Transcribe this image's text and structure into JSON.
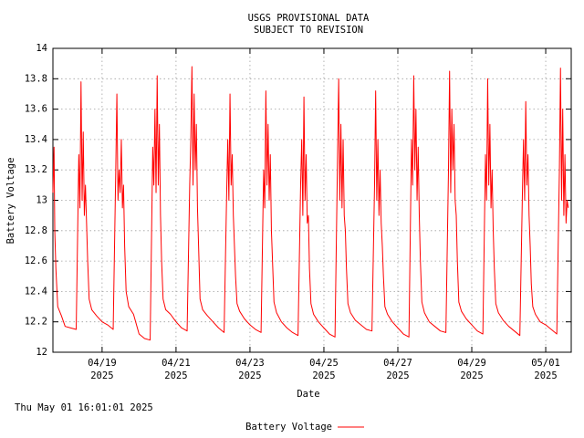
{
  "chart_data": {
    "type": "line",
    "title": "USGS PROVISIONAL DATA",
    "subtitle": "SUBJECT TO REVISION",
    "xlabel": "Date",
    "ylabel": "Battery Voltage",
    "footnote": "Thu May 01 16:01:01 2025",
    "xlim": [
      17.67,
      31.69
    ],
    "ylim": [
      12,
      14
    ],
    "xticks": [
      {
        "value": 19,
        "label": "04/19 2025"
      },
      {
        "value": 21,
        "label": "04/21 2025"
      },
      {
        "value": 23,
        "label": "04/23 2025"
      },
      {
        "value": 25,
        "label": "04/25 2025"
      },
      {
        "value": 27,
        "label": "04/27 2025"
      },
      {
        "value": 29,
        "label": "04/29 2025"
      },
      {
        "value": 31,
        "label": "05/01 2025"
      }
    ],
    "yticks": [
      12,
      12.2,
      12.4,
      12.6,
      12.8,
      13,
      13.2,
      13.4,
      13.6,
      13.8,
      14
    ],
    "grid": true,
    "legend": "bottom",
    "x": [
      17.67,
      17.7,
      17.72,
      17.75,
      17.8,
      17.9,
      18,
      18.15,
      18.3,
      18.37,
      18.4,
      18.43,
      18.46,
      18.49,
      18.52,
      18.55,
      18.58,
      18.61,
      18.65,
      18.72,
      18.85,
      19,
      19.15,
      19.3,
      19.37,
      19.4,
      19.43,
      19.46,
      19.49,
      19.52,
      19.55,
      19.58,
      19.61,
      19.65,
      19.72,
      19.85,
      20,
      20.15,
      20.3,
      20.37,
      20.4,
      20.43,
      20.46,
      20.49,
      20.52,
      20.55,
      20.58,
      20.61,
      20.65,
      20.72,
      20.85,
      21,
      21.15,
      21.3,
      21.37,
      21.4,
      21.43,
      21.46,
      21.49,
      21.52,
      21.55,
      21.58,
      21.61,
      21.65,
      21.72,
      21.85,
      22,
      22.15,
      22.3,
      22.37,
      22.4,
      22.43,
      22.46,
      22.49,
      22.52,
      22.55,
      22.58,
      22.61,
      22.65,
      22.72,
      22.85,
      23,
      23.15,
      23.3,
      23.37,
      23.4,
      23.43,
      23.46,
      23.49,
      23.52,
      23.55,
      23.58,
      23.61,
      23.65,
      23.72,
      23.85,
      24,
      24.15,
      24.3,
      24.37,
      24.4,
      24.43,
      24.46,
      24.49,
      24.52,
      24.55,
      24.58,
      24.61,
      24.65,
      24.72,
      24.85,
      25,
      25.15,
      25.3,
      25.37,
      25.4,
      25.43,
      25.46,
      25.49,
      25.52,
      25.55,
      25.58,
      25.61,
      25.65,
      25.72,
      25.85,
      26,
      26.15,
      26.3,
      26.37,
      26.4,
      26.43,
      26.46,
      26.49,
      26.52,
      26.55,
      26.58,
      26.61,
      26.65,
      26.72,
      26.85,
      27,
      27.15,
      27.3,
      27.37,
      27.4,
      27.43,
      27.46,
      27.49,
      27.52,
      27.55,
      27.58,
      27.61,
      27.65,
      27.72,
      27.85,
      28,
      28.15,
      28.3,
      28.37,
      28.4,
      28.43,
      28.46,
      28.49,
      28.52,
      28.55,
      28.58,
      28.61,
      28.65,
      28.72,
      28.85,
      29,
      29.15,
      29.3,
      29.37,
      29.4,
      29.43,
      29.46,
      29.49,
      29.52,
      29.55,
      29.58,
      29.61,
      29.65,
      29.72,
      29.85,
      30,
      30.15,
      30.3,
      30.37,
      30.4,
      30.43,
      30.46,
      30.49,
      30.52,
      30.55,
      30.58,
      30.61,
      30.65,
      30.72,
      30.85,
      31,
      31.15,
      31.3,
      31.37,
      31.4,
      31.43,
      31.46,
      31.49,
      31.52,
      31.55,
      31.58,
      31.61
    ],
    "series": [
      {
        "name": "Battery Voltage",
        "color": "#ff0000",
        "values": [
          13.05,
          13.35,
          12.8,
          12.55,
          12.3,
          12.24,
          12.17,
          12.16,
          12.15,
          13.3,
          12.95,
          13.78,
          13.0,
          13.45,
          12.9,
          13.1,
          12.85,
          12.6,
          12.35,
          12.28,
          12.24,
          12.2,
          12.18,
          12.15,
          13.2,
          13.7,
          13.0,
          13.2,
          13.05,
          13.4,
          12.95,
          13.1,
          12.7,
          12.4,
          12.3,
          12.25,
          12.12,
          12.09,
          12.08,
          13.35,
          13.1,
          13.6,
          13.05,
          13.82,
          13.1,
          13.5,
          12.9,
          12.6,
          12.35,
          12.28,
          12.25,
          12.2,
          12.16,
          12.14,
          13.1,
          13.4,
          13.88,
          13.1,
          13.7,
          13.2,
          13.5,
          12.95,
          12.7,
          12.35,
          12.28,
          12.24,
          12.2,
          12.16,
          12.13,
          13.05,
          13.4,
          13.0,
          13.7,
          13.1,
          13.3,
          12.9,
          12.7,
          12.5,
          12.32,
          12.27,
          12.22,
          12.18,
          12.15,
          12.13,
          13.2,
          12.95,
          13.72,
          13.1,
          13.5,
          13.0,
          13.3,
          12.8,
          12.6,
          12.33,
          12.26,
          12.2,
          12.16,
          12.13,
          12.11,
          13.1,
          13.4,
          12.9,
          13.68,
          13.0,
          13.3,
          12.85,
          12.9,
          12.55,
          12.32,
          12.25,
          12.2,
          12.16,
          12.12,
          12.1,
          13.3,
          13.8,
          13.0,
          13.5,
          12.95,
          13.4,
          12.9,
          12.8,
          12.55,
          12.32,
          12.26,
          12.21,
          12.18,
          12.15,
          12.14,
          13.1,
          13.72,
          13.0,
          13.4,
          12.9,
          13.2,
          12.85,
          12.7,
          12.5,
          12.3,
          12.25,
          12.2,
          12.16,
          12.12,
          12.1,
          13.4,
          13.1,
          13.82,
          13.2,
          13.6,
          13.0,
          13.35,
          12.9,
          12.6,
          12.33,
          12.26,
          12.2,
          12.17,
          12.14,
          12.13,
          13.2,
          13.85,
          13.05,
          13.6,
          13.2,
          13.5,
          13.0,
          12.9,
          12.6,
          12.33,
          12.27,
          12.22,
          12.18,
          12.14,
          12.12,
          13.3,
          13.0,
          13.8,
          13.1,
          13.5,
          12.95,
          13.2,
          12.8,
          12.55,
          12.32,
          12.26,
          12.21,
          12.17,
          12.14,
          12.11,
          13.05,
          13.4,
          13.0,
          13.65,
          13.1,
          13.3,
          12.9,
          12.7,
          12.45,
          12.3,
          12.25,
          12.2,
          12.18,
          12.15,
          12.12,
          13.2,
          13.87,
          13.0,
          13.6,
          12.9,
          13.3,
          12.85,
          13.0,
          12.95
        ]
      }
    ]
  }
}
